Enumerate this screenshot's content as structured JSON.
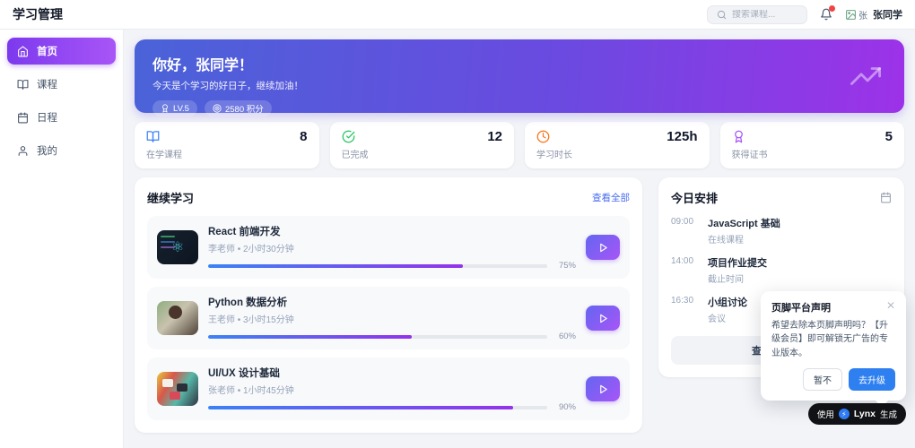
{
  "header": {
    "app_title": "学习管理",
    "search_placeholder": "搜索课程...",
    "avatar_alt": "张",
    "user_name": "张同学"
  },
  "sidebar": {
    "items": [
      {
        "label": "首页",
        "icon": "home-icon",
        "active": true
      },
      {
        "label": "课程",
        "icon": "book-icon",
        "active": false
      },
      {
        "label": "日程",
        "icon": "calendar-icon",
        "active": false
      },
      {
        "label": "我的",
        "icon": "user-icon",
        "active": false
      }
    ]
  },
  "banner": {
    "title": "你好，张同学！",
    "subtitle": "今天是个学习的好日子，继续加油！",
    "level_badge": "LV.5",
    "points_badge": "2580 积分"
  },
  "stats": [
    {
      "icon": "book-icon",
      "color": "#3b82f6",
      "value": "8",
      "label": "在学课程"
    },
    {
      "icon": "check-circle-icon",
      "color": "#22c55e",
      "value": "12",
      "label": "已完成"
    },
    {
      "icon": "clock-icon",
      "color": "#f97316",
      "value": "125h",
      "label": "学习时长"
    },
    {
      "icon": "medal-icon",
      "color": "#a855f7",
      "value": "5",
      "label": "获得证书"
    }
  ],
  "continue_learning": {
    "title": "继续学习",
    "view_all_label": "查看全部",
    "courses": [
      {
        "title": "React 前端开发",
        "meta": "李老师 • 2小时30分钟",
        "progress": 75,
        "progress_label": "75%"
      },
      {
        "title": "Python 数据分析",
        "meta": "王老师 • 3小时15分钟",
        "progress": 60,
        "progress_label": "60%"
      },
      {
        "title": "UI/UX 设计基础",
        "meta": "张老师 • 1小时45分钟",
        "progress": 90,
        "progress_label": "90%"
      }
    ]
  },
  "today_schedule": {
    "title": "今日安排",
    "items": [
      {
        "time": "09:00",
        "title": "JavaScript 基础",
        "type": "在线课程"
      },
      {
        "time": "14:00",
        "title": "项目作业提交",
        "type": "截止时间"
      },
      {
        "time": "16:30",
        "title": "小组讨论",
        "type": "会议"
      }
    ],
    "view_full_label": "查看完整日程"
  },
  "footer_popup": {
    "title": "页脚平台声明",
    "body": "希望去除本页脚声明吗？【升级会员】即可解锁无广告的专业版本。",
    "dismiss_label": "暂不",
    "upgrade_label": "去升级"
  },
  "lynx_badge": {
    "prefix": "使用",
    "brand": "Lynx",
    "suffix": "生成"
  },
  "colors": {
    "banner_gradient_start": "#4a63d8",
    "banner_gradient_end": "#9d32e8",
    "active_nav_gradient_start": "#7c3aed",
    "active_nav_gradient_end": "#a855f7",
    "progress_gradient_start": "#3b82f6",
    "progress_gradient_end": "#9333ea",
    "link_blue": "#4a6cf0",
    "upgrade_blue": "#2e7ff0",
    "notification_red": "#ef4444"
  }
}
